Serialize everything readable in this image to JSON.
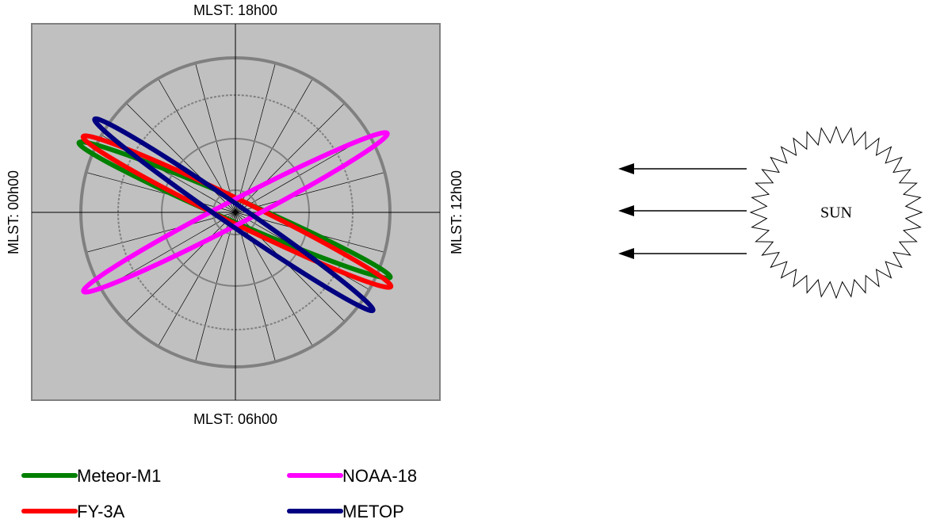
{
  "labels": {
    "top": "MLST:  18h00",
    "bottom": "MLST:  06h00",
    "left": "MLST: 00h00",
    "right": "MLST:  12h00"
  },
  "sun": "SUN",
  "legend": [
    {
      "name": "Meteor-M1",
      "color": "#008000"
    },
    {
      "name": "FY-3A",
      "color": "#ff0000"
    },
    {
      "name": "NOAA-18",
      "color": "#ff00ff"
    },
    {
      "name": "METOP",
      "color": "#000080"
    }
  ]
}
